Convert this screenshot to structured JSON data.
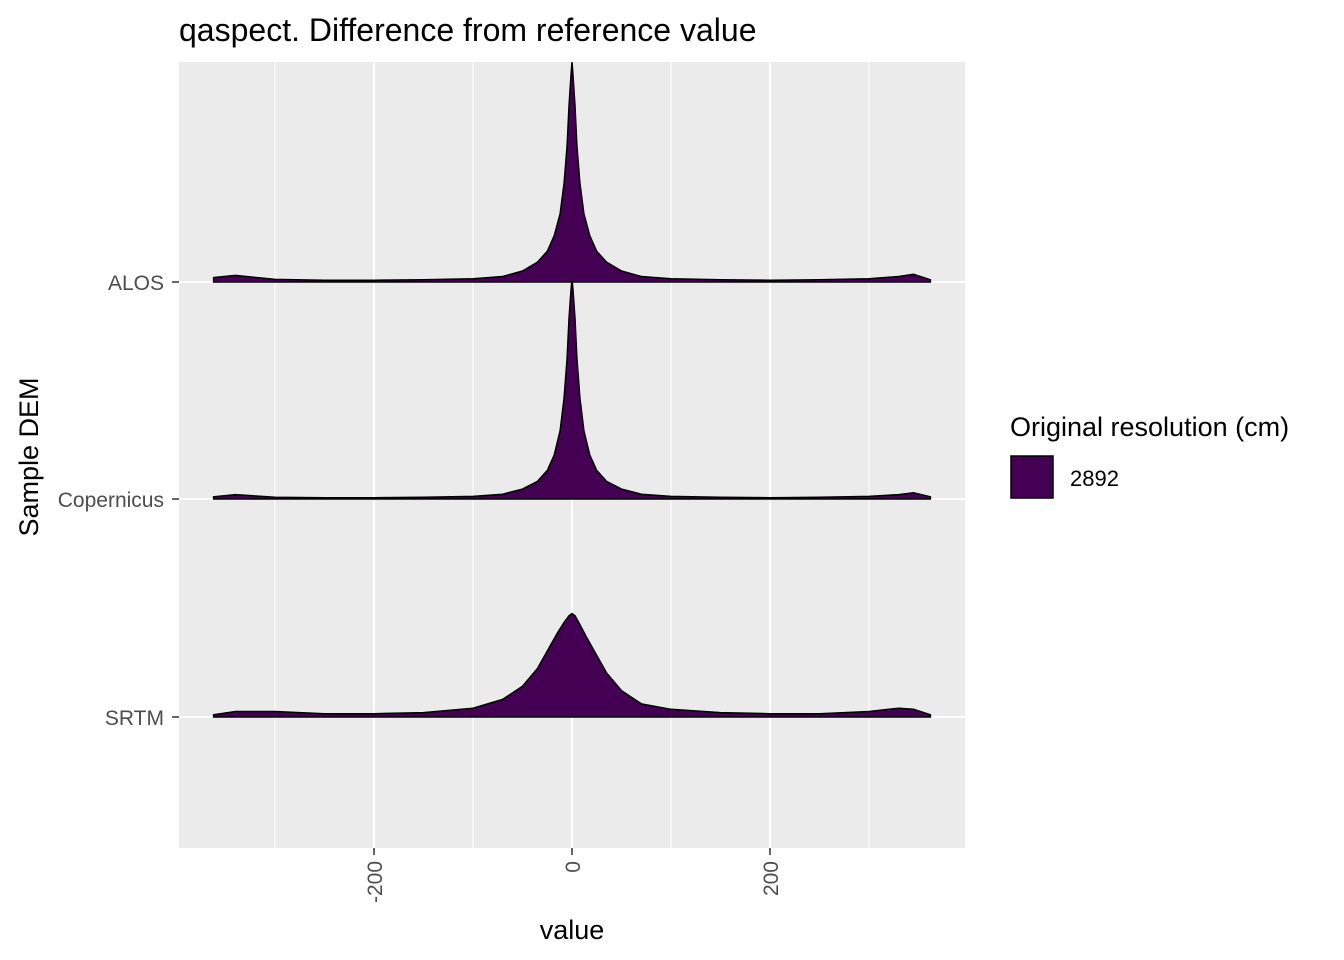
{
  "chart_data": {
    "type": "ridgeline",
    "title": "qaspect. Difference from reference value",
    "xlabel": "value",
    "ylabel": "Sample DEM",
    "xlim": [
      -397,
      397
    ],
    "xticks": [
      -200,
      0,
      200
    ],
    "grid": true,
    "categories": [
      "ALOS",
      "Copernicus",
      "SRTM"
    ],
    "legend": {
      "title": "Original resolution (cm)",
      "entries": [
        {
          "label": "2892",
          "color": "#440154"
        }
      ],
      "position": "right"
    },
    "fill_color": "#440154",
    "series": [
      {
        "name": "ALOS",
        "x": [
          -362,
          -340,
          -300,
          -250,
          -200,
          -150,
          -100,
          -70,
          -50,
          -35,
          -25,
          -18,
          -12,
          -8,
          -5,
          -3,
          -1,
          0,
          1,
          3,
          5,
          8,
          12,
          18,
          25,
          35,
          50,
          70,
          100,
          150,
          200,
          250,
          300,
          330,
          345,
          362
        ],
        "density": [
          0.02,
          0.03,
          0.012,
          0.008,
          0.008,
          0.01,
          0.015,
          0.025,
          0.05,
          0.09,
          0.14,
          0.21,
          0.31,
          0.45,
          0.62,
          0.8,
          0.94,
          1.0,
          0.94,
          0.8,
          0.62,
          0.45,
          0.31,
          0.21,
          0.14,
          0.09,
          0.05,
          0.025,
          0.015,
          0.01,
          0.008,
          0.01,
          0.015,
          0.025,
          0.035,
          0.01
        ]
      },
      {
        "name": "Copernicus",
        "x": [
          -362,
          -340,
          -300,
          -250,
          -200,
          -150,
          -100,
          -70,
          -50,
          -35,
          -25,
          -18,
          -12,
          -8,
          -5,
          -3,
          -1,
          0,
          1,
          3,
          5,
          8,
          12,
          18,
          25,
          35,
          50,
          70,
          100,
          150,
          200,
          250,
          300,
          330,
          345,
          362
        ],
        "density": [
          0.01,
          0.02,
          0.008,
          0.006,
          0.006,
          0.008,
          0.012,
          0.022,
          0.045,
          0.08,
          0.13,
          0.2,
          0.31,
          0.46,
          0.64,
          0.82,
          0.95,
          1.0,
          0.95,
          0.82,
          0.64,
          0.46,
          0.31,
          0.2,
          0.13,
          0.08,
          0.045,
          0.022,
          0.012,
          0.008,
          0.006,
          0.008,
          0.012,
          0.02,
          0.028,
          0.01
        ]
      },
      {
        "name": "SRTM",
        "x": [
          -362,
          -340,
          -300,
          -250,
          -200,
          -150,
          -100,
          -70,
          -50,
          -35,
          -25,
          -15,
          -8,
          -3,
          0,
          3,
          8,
          15,
          25,
          35,
          50,
          70,
          100,
          150,
          200,
          250,
          300,
          330,
          345,
          362
        ],
        "density": [
          0.01,
          0.025,
          0.025,
          0.015,
          0.015,
          0.02,
          0.04,
          0.08,
          0.14,
          0.22,
          0.3,
          0.38,
          0.43,
          0.46,
          0.47,
          0.46,
          0.42,
          0.36,
          0.28,
          0.2,
          0.12,
          0.06,
          0.035,
          0.02,
          0.015,
          0.015,
          0.025,
          0.04,
          0.035,
          0.01
        ]
      }
    ]
  }
}
